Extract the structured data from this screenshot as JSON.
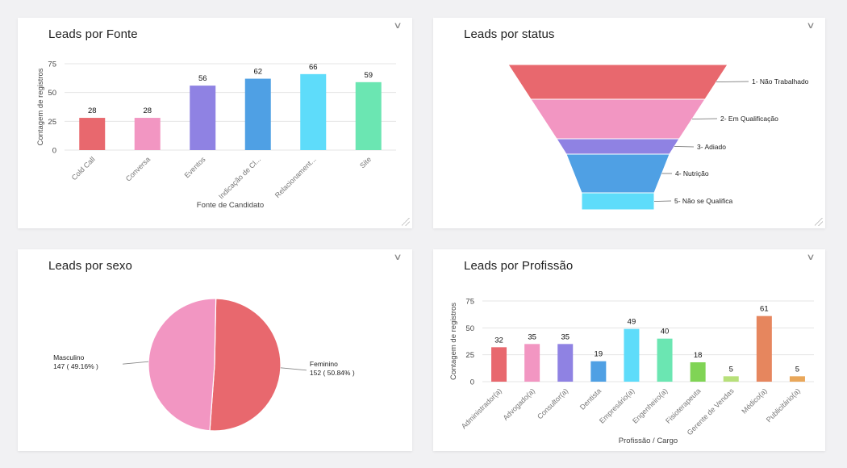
{
  "ui": {
    "menu_icon": "chevron-down-icon",
    "resize_icon": "resize-grip-icon"
  },
  "cards": {
    "fonte": {
      "title": "Leads por Fonte"
    },
    "status": {
      "title": "Leads por status"
    },
    "sexo": {
      "title": "Leads por sexo"
    },
    "profissao": {
      "title": "Leads por Profissão"
    }
  },
  "chart_data": [
    {
      "id": "fonte",
      "type": "bar",
      "title": "Leads por Fonte",
      "xlabel": "Fonte de Candidato",
      "ylabel": "Contagem de registros",
      "ylim": [
        0,
        75
      ],
      "yticks": [
        0,
        25,
        50,
        75
      ],
      "grid": true,
      "categories": [
        "Cold Call",
        "Conversa",
        "Eventos",
        "Indicação de Cl...",
        "Relacionament...",
        "Site"
      ],
      "values": [
        28,
        28,
        56,
        62,
        66,
        59
      ],
      "colors": [
        "#e8686e",
        "#f296c2",
        "#8f82e3",
        "#4fa0e4",
        "#5edcfa",
        "#6be6b2"
      ]
    },
    {
      "id": "status",
      "type": "funnel",
      "title": "Leads por status",
      "categories": [
        "1- Não Trabalhado",
        "2- Em Qualificação",
        "3- Adiado",
        "4- Nutrição",
        "5- Não se Qualifica"
      ],
      "colors": [
        "#e8686e",
        "#f296c2",
        "#8f82e3",
        "#4fa0e4",
        "#5edcfa"
      ]
    },
    {
      "id": "sexo",
      "type": "pie",
      "title": "Leads por sexo",
      "slices": [
        {
          "label": "Feminino",
          "value": 152,
          "percent": "50.84%",
          "text": "152 ( 50.84% )",
          "color": "#e8686e"
        },
        {
          "label": "Masculino",
          "value": 147,
          "percent": "49.16%",
          "text": "147 ( 49.16% )",
          "color": "#f296c2"
        }
      ]
    },
    {
      "id": "profissao",
      "type": "bar",
      "title": "Leads por Profissão",
      "xlabel": "Profissão / Cargo",
      "ylabel": "Contagem de registros",
      "ylim": [
        0,
        75
      ],
      "yticks": [
        0,
        25,
        50,
        75
      ],
      "grid": true,
      "categories": [
        "Administrador(a)",
        "Advogado(a)",
        "Consultor(a)",
        "Dentista",
        "Empresário(a)",
        "Engenheiro(a)",
        "Fisioterapeuta",
        "Gerente de Vendas",
        "Médico(a)",
        "Publicitário(a)"
      ],
      "values": [
        32,
        35,
        35,
        19,
        49,
        40,
        18,
        5,
        61,
        5
      ],
      "colors": [
        "#e8686e",
        "#f296c2",
        "#8f82e3",
        "#4fa0e4",
        "#5edcfa",
        "#6be6b2",
        "#80d455",
        "#b7e07a",
        "#e6865e",
        "#e9a75a"
      ]
    }
  ]
}
